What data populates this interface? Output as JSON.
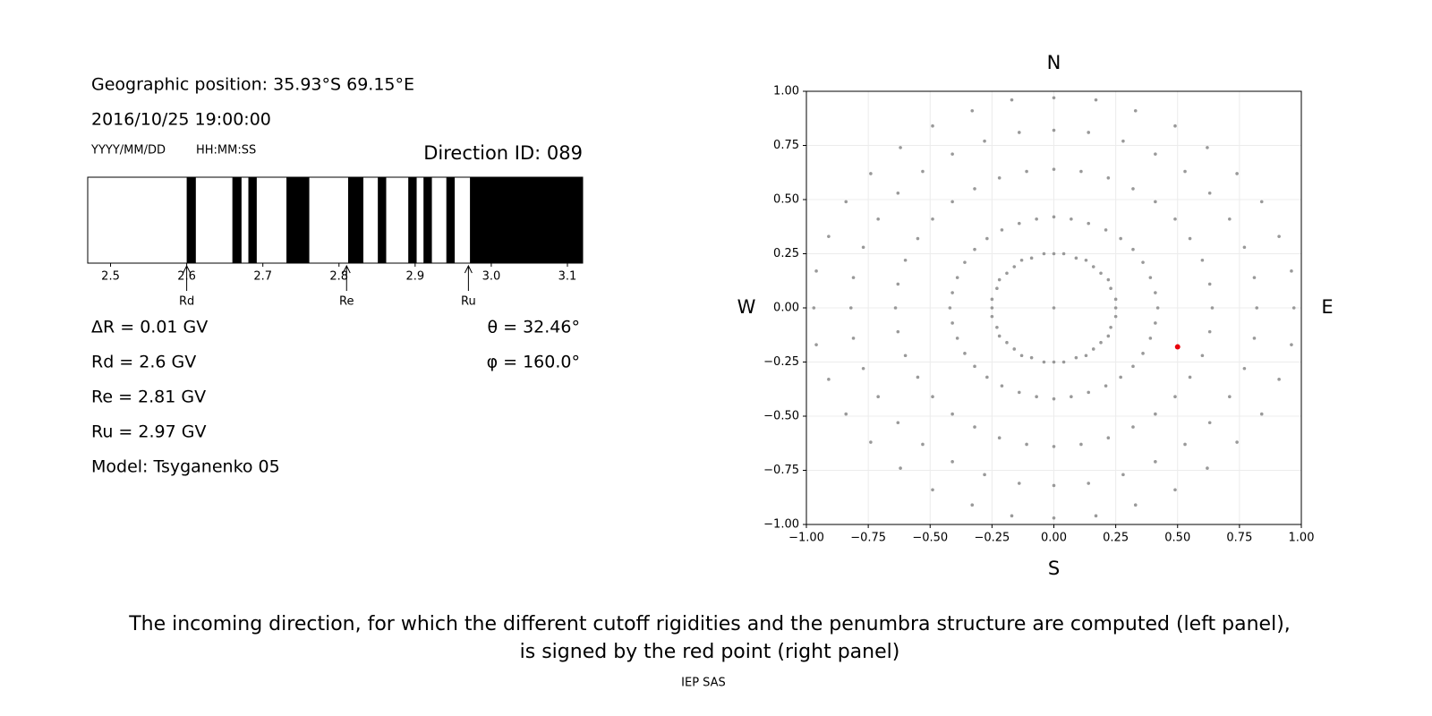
{
  "info": {
    "position": "Geographic position: 35.93°S 69.15°E",
    "datetime": "2016/10/25 19:00:00",
    "date_format": "YYYY/MM/DD",
    "time_format": "HH:MM:SS",
    "direction": "Direction ID: 089",
    "params": [
      "ΔR = 0.01 GV",
      "Rd = 2.6 GV",
      "Re = 2.81 GV",
      "Ru = 2.97 GV",
      "Model: Tsyganenko 05"
    ],
    "angles": [
      "θ = 32.46°",
      "φ = 160.0°"
    ]
  },
  "caption": [
    "The incoming direction, for which the different cutoff rigidities and the penumbra structure are computed (left panel),",
    "is signed by the red point (right panel)"
  ],
  "footer": "IEP SAS",
  "chart_data": [
    {
      "type": "penumbra",
      "color": "#000000",
      "xlim": [
        2.47,
        3.12
      ],
      "xticks": [
        2.5,
        2.6,
        2.7,
        2.8,
        2.9,
        {
          "value": 3,
          "label": "3.0"
        },
        3.1
      ],
      "bands": [
        [
          2.6,
          2.612
        ],
        [
          2.66,
          2.672
        ],
        [
          2.681,
          2.692
        ],
        [
          2.731,
          2.761
        ],
        [
          2.812,
          2.832
        ],
        [
          2.851,
          2.862
        ],
        [
          2.891,
          2.902
        ],
        [
          2.911,
          2.922
        ],
        [
          2.941,
          2.952
        ],
        [
          2.972,
          3.12
        ]
      ],
      "markers": [
        {
          "label": "Rd",
          "value": 2.6
        },
        {
          "label": "Re",
          "value": 2.81
        },
        {
          "label": "Ru",
          "value": 2.97
        }
      ]
    },
    {
      "type": "scatter",
      "grid": true,
      "xlim": [
        -1,
        1
      ],
      "ylim": [
        -1,
        1
      ],
      "xticks": [
        {
          "value": -1,
          "label": "−1.00"
        },
        {
          "value": -0.75,
          "label": "−0.75"
        },
        {
          "value": -0.5,
          "label": "−0.50"
        },
        {
          "value": -0.25,
          "label": "−0.25"
        },
        {
          "value": 0,
          "label": "0.00"
        },
        {
          "value": 0.25,
          "label": "0.25"
        },
        {
          "value": 0.5,
          "label": "0.50"
        },
        {
          "value": 0.75,
          "label": "0.75"
        },
        {
          "value": 1,
          "label": "1.00"
        }
      ],
      "yticks": [
        {
          "value": -1,
          "label": "−1.00"
        },
        {
          "value": -0.75,
          "label": "−0.75"
        },
        {
          "value": -0.5,
          "label": "−0.50"
        },
        {
          "value": -0.25,
          "label": "−0.25"
        },
        {
          "value": 0,
          "label": "0.00"
        },
        {
          "value": 0.25,
          "label": "0.25"
        },
        {
          "value": 0.5,
          "label": "0.50"
        },
        {
          "value": 0.75,
          "label": "0.75"
        },
        {
          "value": 1,
          "label": "1.00"
        }
      ],
      "directions": {
        "north": "N",
        "south": "S",
        "west": "W",
        "east": "E"
      },
      "series": [
        {
          "color": "#999999",
          "x": [
            0,
            0.25,
            0.25,
            0.23,
            0.22,
            0.19,
            0.16,
            0.13,
            0.09,
            0.04,
            0,
            -0.04,
            -0.09,
            -0.13,
            -0.16,
            -0.19,
            -0.22,
            -0.23,
            -0.25,
            -0.25,
            -0.25,
            -0.23,
            -0.22,
            -0.19,
            -0.16,
            -0.13,
            -0.09,
            -0.04,
            0,
            0.04,
            0.09,
            0.13,
            0.16,
            0.19,
            0.22,
            0.23,
            0.25,
            0.42,
            0.41,
            0.39,
            0.36,
            0.32,
            0.27,
            0.21,
            0.14,
            0.07,
            0,
            -0.07,
            -0.14,
            -0.21,
            -0.27,
            -0.32,
            -0.36,
            -0.39,
            -0.41,
            -0.42,
            -0.41,
            -0.39,
            -0.36,
            -0.32,
            -0.27,
            -0.21,
            -0.14,
            -0.07,
            0,
            0.07,
            0.14,
            0.21,
            0.27,
            0.32,
            0.36,
            0.39,
            0.41,
            0.64,
            0.63,
            0.6,
            0.55,
            0.49,
            0.41,
            0.32,
            0.22,
            0.11,
            0,
            -0.11,
            -0.22,
            -0.32,
            -0.41,
            -0.49,
            -0.55,
            -0.6,
            -0.63,
            -0.64,
            -0.63,
            -0.6,
            -0.55,
            -0.49,
            -0.41,
            -0.32,
            -0.22,
            -0.11,
            0,
            0.11,
            0.22,
            0.32,
            0.41,
            0.49,
            0.55,
            0.6,
            0.63,
            0.82,
            0.81,
            0.77,
            0.71,
            0.63,
            0.53,
            0.41,
            0.28,
            0.14,
            0,
            -0.14,
            -0.28,
            -0.41,
            -0.53,
            -0.63,
            -0.71,
            -0.77,
            -0.81,
            -0.82,
            -0.81,
            -0.77,
            -0.71,
            -0.63,
            -0.53,
            -0.41,
            -0.28,
            -0.14,
            0,
            0.14,
            0.28,
            0.41,
            0.53,
            0.63,
            0.71,
            0.77,
            0.81,
            0.97,
            0.96,
            0.91,
            0.84,
            0.74,
            0.62,
            0.49,
            0.33,
            0.17,
            0,
            -0.17,
            -0.33,
            -0.49,
            -0.62,
            -0.74,
            -0.84,
            -0.91,
            -0.96,
            -0.97,
            -0.96,
            -0.91,
            -0.84,
            -0.74,
            -0.62,
            -0.49,
            -0.33,
            -0.17,
            0,
            0.17,
            0.33,
            0.49,
            0.62,
            0.74,
            0.84,
            0.91,
            0.96
          ],
          "y": [
            0,
            0,
            0.04,
            0.09,
            0.13,
            0.16,
            0.19,
            0.22,
            0.23,
            0.25,
            0.25,
            0.25,
            0.23,
            0.22,
            0.19,
            0.16,
            0.13,
            0.09,
            0.04,
            0,
            -0.04,
            -0.09,
            -0.13,
            -0.16,
            -0.19,
            -0.22,
            -0.23,
            -0.25,
            -0.25,
            -0.25,
            -0.23,
            -0.22,
            -0.19,
            -0.16,
            -0.13,
            -0.09,
            -0.04,
            0,
            0.07,
            0.14,
            0.21,
            0.27,
            0.32,
            0.36,
            0.39,
            0.41,
            0.42,
            0.41,
            0.39,
            0.36,
            0.32,
            0.27,
            0.21,
            0.14,
            0.07,
            0,
            -0.07,
            -0.14,
            -0.21,
            -0.27,
            -0.32,
            -0.36,
            -0.39,
            -0.41,
            -0.42,
            -0.41,
            -0.39,
            -0.36,
            -0.32,
            -0.27,
            -0.21,
            -0.14,
            -0.07,
            0,
            0.11,
            0.22,
            0.32,
            0.41,
            0.49,
            0.55,
            0.6,
            0.63,
            0.64,
            0.63,
            0.6,
            0.55,
            0.49,
            0.41,
            0.32,
            0.22,
            0.11,
            0,
            -0.11,
            -0.22,
            -0.32,
            -0.41,
            -0.49,
            -0.55,
            -0.6,
            -0.63,
            -0.64,
            -0.63,
            -0.6,
            -0.55,
            -0.49,
            -0.41,
            -0.32,
            -0.22,
            -0.11,
            0,
            0.14,
            0.28,
            0.41,
            0.53,
            0.63,
            0.71,
            0.77,
            0.81,
            0.82,
            0.81,
            0.77,
            0.71,
            0.63,
            0.53,
            0.41,
            0.28,
            0.14,
            0,
            -0.14,
            -0.28,
            -0.41,
            -0.53,
            -0.63,
            -0.71,
            -0.77,
            -0.81,
            -0.82,
            -0.81,
            -0.77,
            -0.71,
            -0.63,
            -0.53,
            -0.41,
            -0.28,
            -0.14,
            0,
            0.17,
            0.33,
            0.49,
            0.62,
            0.74,
            0.84,
            0.91,
            0.96,
            0.97,
            0.96,
            0.91,
            0.84,
            0.74,
            0.62,
            0.49,
            0.33,
            0.17,
            0,
            -0.17,
            -0.33,
            -0.49,
            -0.62,
            -0.74,
            -0.84,
            -0.91,
            -0.96,
            -0.97,
            -0.96,
            -0.91,
            -0.84,
            -0.74,
            -0.62,
            -0.49,
            -0.33,
            -0.17
          ]
        },
        {
          "color": "#e8000b",
          "x": [
            0.5
          ],
          "y": [
            -0.18
          ]
        }
      ]
    }
  ]
}
